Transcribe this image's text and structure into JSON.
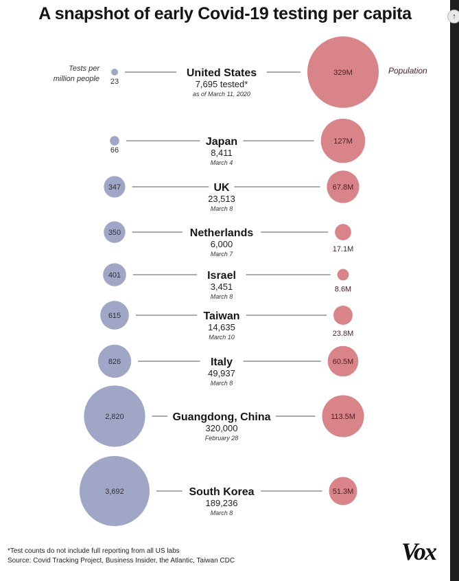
{
  "title": "A snapshot of early Covid-19 testing per capita",
  "legend": {
    "tests_label_line1": "Tests per",
    "tests_label_line2": "million people",
    "population_label": "Population"
  },
  "colors": {
    "tests": "#9fa6c6",
    "population": "#d98488",
    "line": "#555555"
  },
  "chart_data": {
    "type": "bubble",
    "title": "A snapshot of early Covid-19 testing per capita",
    "series": [
      {
        "name": "Tests per million people"
      },
      {
        "name": "Population"
      }
    ],
    "rows": [
      {
        "name": "United States",
        "tests_per_million": 23,
        "tests_per_million_label": "23",
        "tests_label": "7,695 tested*",
        "date": "as of March 11, 2020",
        "population_m": 329,
        "population_label": "329M"
      },
      {
        "name": "Japan",
        "tests_per_million": 66,
        "tests_per_million_label": "66",
        "tests_label": "8,411",
        "date": "March 4",
        "population_m": 127,
        "population_label": "127M"
      },
      {
        "name": "UK",
        "tests_per_million": 347,
        "tests_per_million_label": "347",
        "tests_label": "23,513",
        "date": "March 8",
        "population_m": 67.8,
        "population_label": "67.8M"
      },
      {
        "name": "Netherlands",
        "tests_per_million": 350,
        "tests_per_million_label": "350",
        "tests_label": "6,000",
        "date": "March 7",
        "population_m": 17.1,
        "population_label": "17.1M"
      },
      {
        "name": "Israel",
        "tests_per_million": 401,
        "tests_per_million_label": "401",
        "tests_label": "3,451",
        "date": "March 8",
        "population_m": 8.6,
        "population_label": "8.6M"
      },
      {
        "name": "Taiwan",
        "tests_per_million": 615,
        "tests_per_million_label": "615",
        "tests_label": "14,635",
        "date": "March 10",
        "population_m": 23.8,
        "population_label": "23.8M"
      },
      {
        "name": "Italy",
        "tests_per_million": 826,
        "tests_per_million_label": "826",
        "tests_label": "49,937",
        "date": "March 8",
        "population_m": 60.5,
        "population_label": "60.5M"
      },
      {
        "name": "Guangdong, China",
        "tests_per_million": 2820,
        "tests_per_million_label": "2,820",
        "tests_label": "320,000",
        "date": "February 28",
        "population_m": 113.5,
        "population_label": "113.5M"
      },
      {
        "name": "South Korea",
        "tests_per_million": 3692,
        "tests_per_million_label": "3,692",
        "tests_label": "189,236",
        "date": "March 8",
        "population_m": 51.3,
        "population_label": "51.3M"
      }
    ]
  },
  "footnote": {
    "note": "*Test counts do not include full reporting from all US labs",
    "source": "Source: Covid Tracking Project, Business Insider, the Atlantic, Taiwan CDC"
  },
  "brand": "Vox",
  "scroll_icon": "arrow-up-icon"
}
